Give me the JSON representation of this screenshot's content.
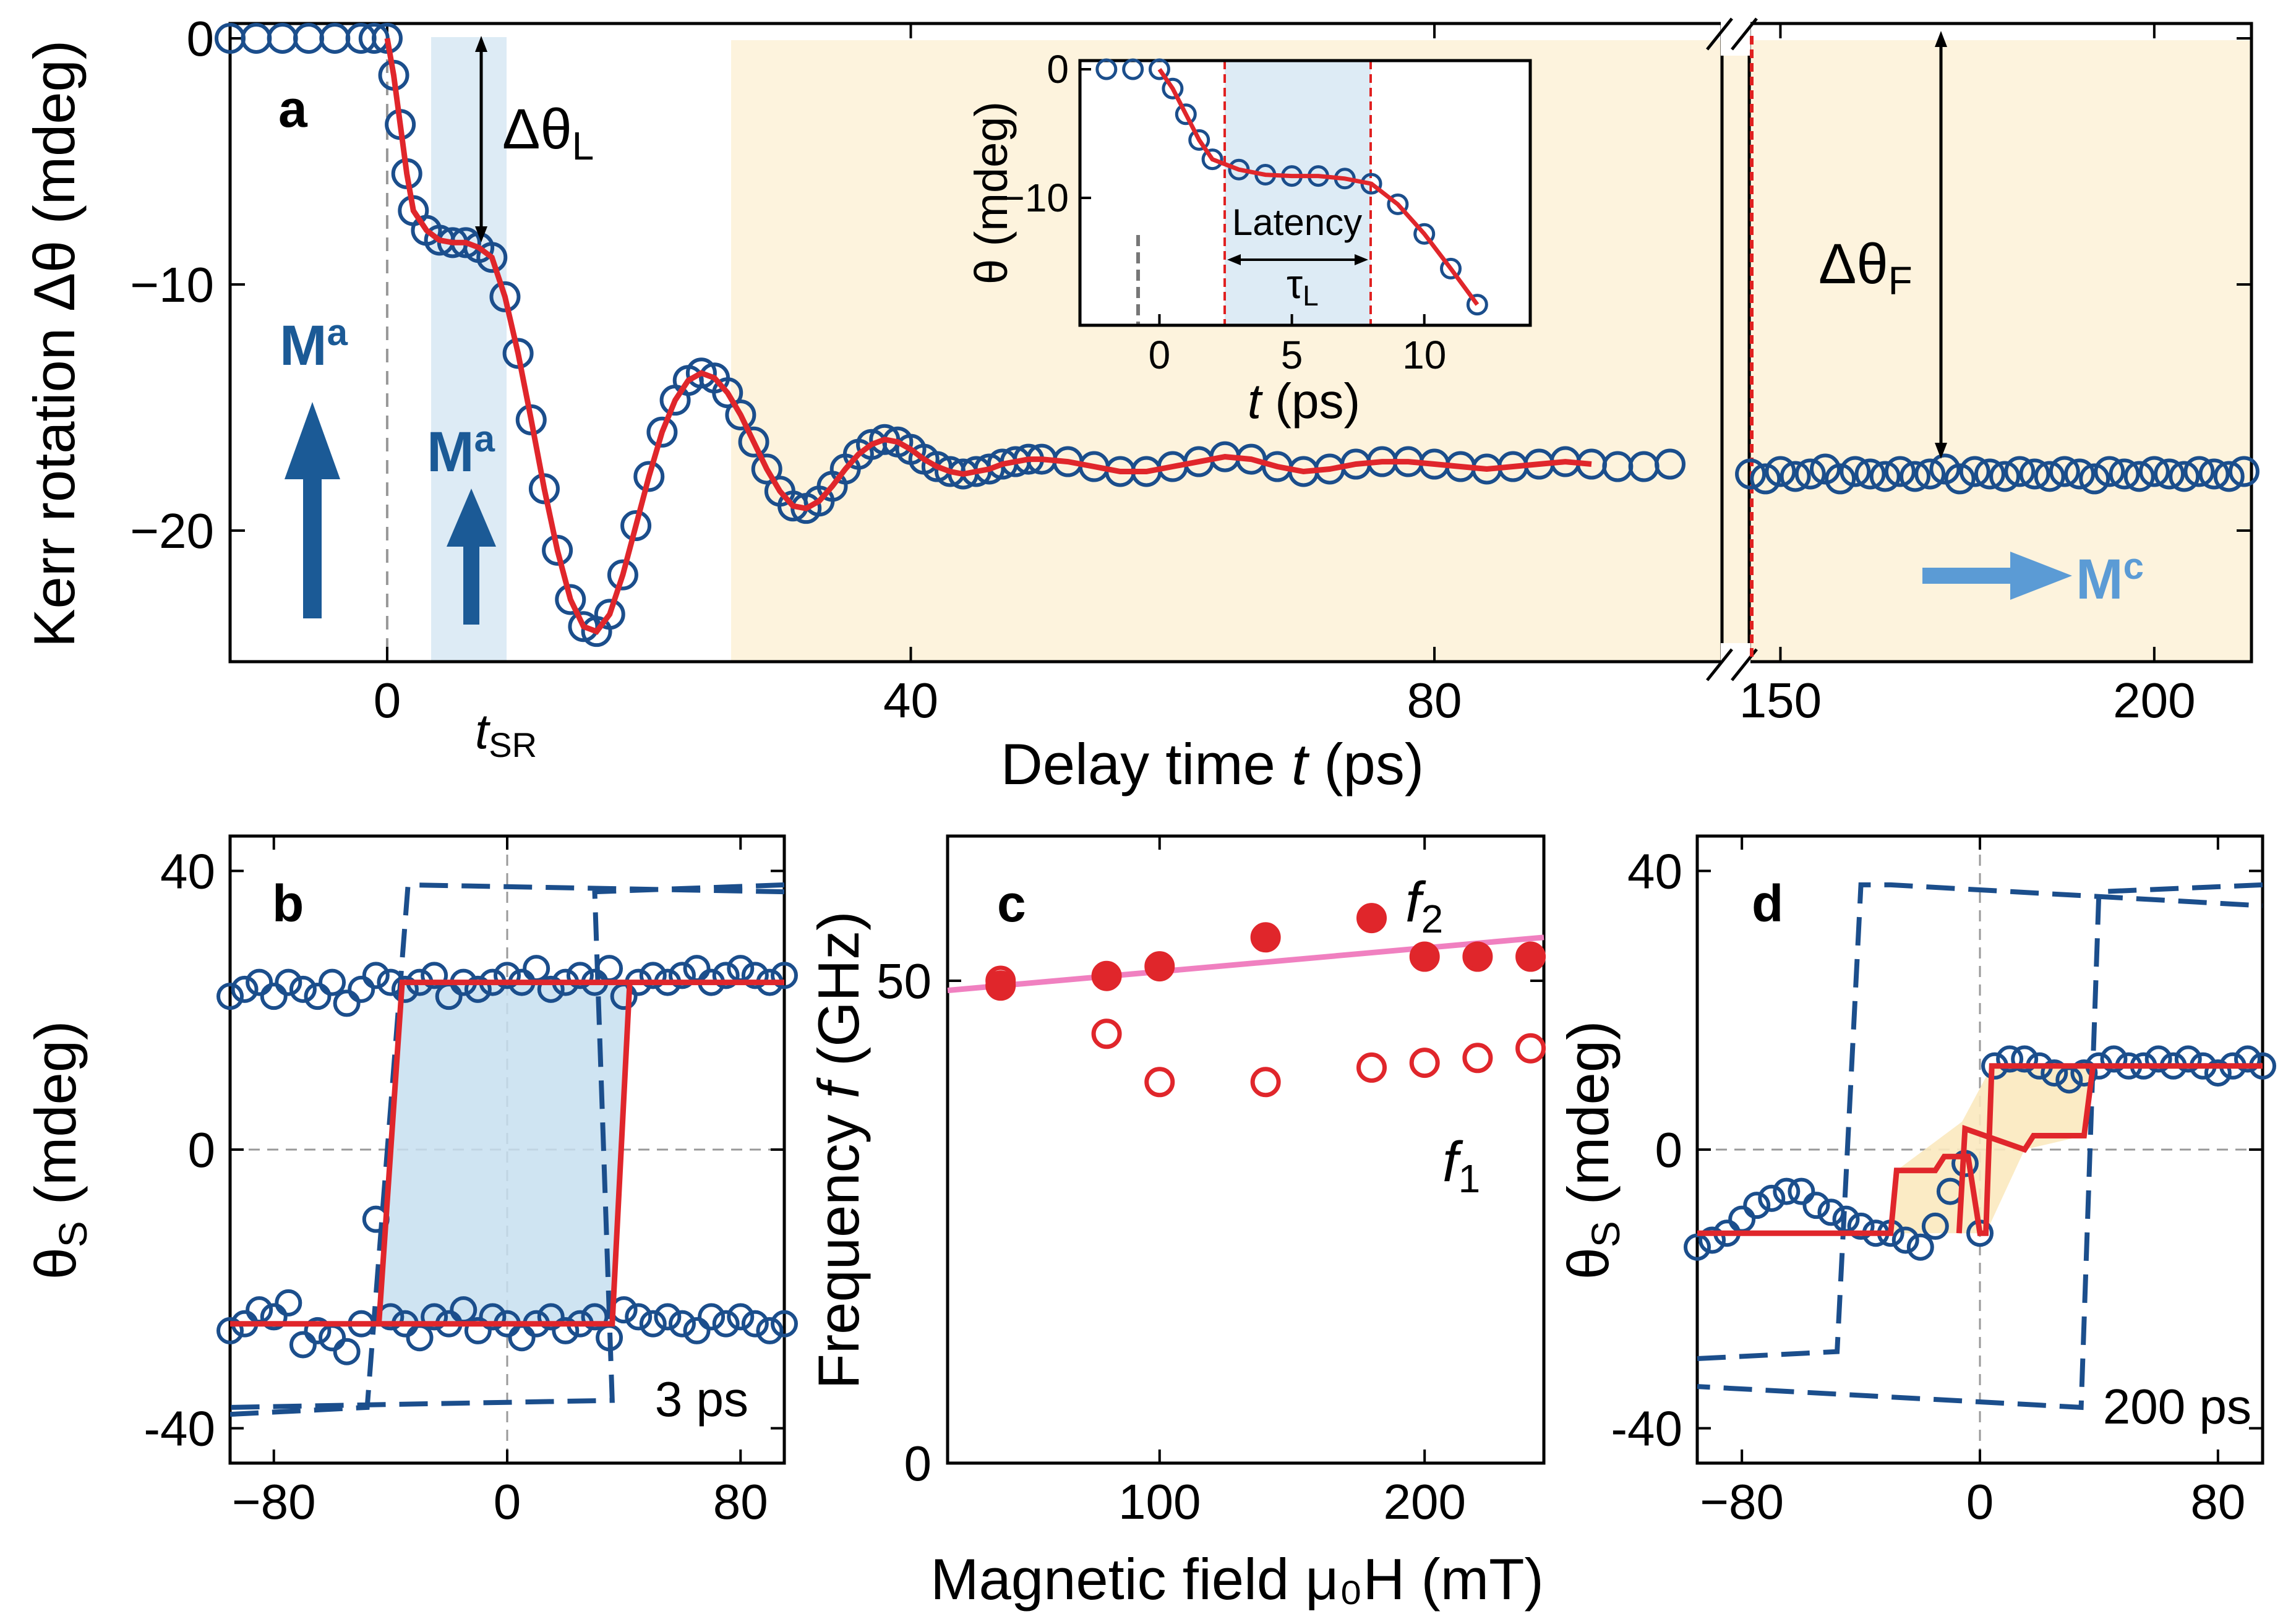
{
  "chart_data": [
    {
      "panel": "a",
      "type": "scatter",
      "xlabel_prefix": "Delay time ",
      "xlabel_var": "t",
      "xlabel_suffix": " (ps)",
      "ylabel": "Kerr rotation Δθ (mdeg)",
      "xlim_left": [
        -12,
        98
      ],
      "xlim_right": [
        145,
        213
      ],
      "ylim": [
        -25,
        1
      ],
      "xticks_left": [
        0,
        40,
        80
      ],
      "xticks_right": [
        150,
        200
      ],
      "yticks": [
        0,
        -10,
        -20
      ],
      "ytick_labels": [
        "0",
        "−10",
        "−20"
      ],
      "t_sr_label": "t",
      "t_sr_sub": "SR",
      "annotations": {
        "delta_L_base": "Δθ",
        "delta_L_sub": "L",
        "delta_F_base": "Δθ",
        "delta_F_sub": "F",
        "M_a": "M",
        "M_a_sup": "a",
        "M_c": "M",
        "M_c_sup": "c"
      },
      "data": {
        "t": [
          -12,
          -10,
          -8,
          -6,
          -4,
          -2,
          -1,
          0,
          0.5,
          1,
          1.5,
          2,
          3,
          4,
          5,
          6,
          7,
          8,
          9,
          10,
          11,
          12,
          13,
          14,
          15,
          16,
          17,
          18,
          19,
          20,
          21,
          22,
          23,
          24,
          25,
          26,
          27,
          28,
          29,
          30,
          31,
          32,
          33,
          34,
          35,
          36,
          37,
          38,
          39,
          40,
          41,
          42,
          43,
          44,
          45,
          46,
          47,
          48,
          49,
          50,
          52,
          54,
          56,
          58,
          60,
          62,
          64,
          66,
          68,
          70,
          72,
          74,
          76,
          78,
          80,
          82,
          84,
          86,
          88,
          90,
          92,
          94,
          96,
          98
        ],
        "dtheta": [
          0,
          0,
          0,
          0,
          0,
          0,
          0,
          0,
          -1.5,
          -3.5,
          -5.5,
          -7,
          -7.8,
          -8.2,
          -8.3,
          -8.3,
          -8.5,
          -8.9,
          -10.5,
          -12.8,
          -15.5,
          -18.3,
          -20.8,
          -22.8,
          -23.9,
          -24.1,
          -23.4,
          -21.8,
          -19.8,
          -17.8,
          -16.0,
          -14.7,
          -13.9,
          -13.6,
          -13.8,
          -14.4,
          -15.3,
          -16.4,
          -17.5,
          -18.4,
          -19.0,
          -19.1,
          -18.8,
          -18.2,
          -17.5,
          -16.9,
          -16.5,
          -16.3,
          -16.4,
          -16.7,
          -17.1,
          -17.4,
          -17.6,
          -17.7,
          -17.6,
          -17.5,
          -17.3,
          -17.2,
          -17.1,
          -17.1,
          -17.2,
          -17.4,
          -17.6,
          -17.6,
          -17.4,
          -17.2,
          -17.0,
          -17.1,
          -17.4,
          -17.6,
          -17.5,
          -17.3,
          -17.2,
          -17.2,
          -17.3,
          -17.4,
          -17.5,
          -17.4,
          -17.3,
          -17.2,
          -17.3,
          -17.4,
          -17.4,
          -17.3
        ],
        "t_far": [
          146,
          148,
          150,
          152,
          154,
          156,
          158,
          160,
          162,
          164,
          166,
          168,
          170,
          172,
          174,
          176,
          178,
          180,
          182,
          184,
          186,
          188,
          190,
          192,
          194,
          196,
          198,
          200,
          202,
          204,
          206,
          208,
          210,
          212
        ],
        "dtheta_far": [
          -17.7,
          -17.9,
          -17.6,
          -17.8,
          -17.7,
          -17.5,
          -17.9,
          -17.6,
          -17.7,
          -17.8,
          -17.6,
          -17.8,
          -17.7,
          -17.5,
          -17.9,
          -17.6,
          -17.7,
          -17.8,
          -17.6,
          -17.7,
          -17.8,
          -17.6,
          -17.7,
          -17.9,
          -17.6,
          -17.7,
          -17.8,
          -17.6,
          -17.7,
          -17.8,
          -17.6,
          -17.7,
          -17.8,
          -17.6
        ]
      },
      "inset": {
        "type": "line",
        "xlabel_var": "t",
        "xlabel_suffix": " (ps)",
        "ylabel": "θ (mdeg)",
        "xlim": [
          -3,
          14
        ],
        "ylim": [
          -19,
          1
        ],
        "xticks": [
          0,
          5,
          10
        ],
        "yticks": [
          0,
          -10
        ],
        "ytick_labels": [
          "0",
          "−10"
        ],
        "latency_label": "Latency",
        "tau_base": "τ",
        "tau_sub": "L",
        "latency_range": [
          3,
          8.2
        ]
      }
    },
    {
      "panel": "b",
      "type": "scatter",
      "ylabel_base": "θ",
      "ylabel_sub": "S",
      "ylabel_suffix": " (mdeg)",
      "xlim": [
        -95,
        95
      ],
      "ylim": [
        -45,
        45
      ],
      "xticks": [
        -80,
        0,
        80
      ],
      "xtick_labels": [
        "−80",
        "0",
        "80"
      ],
      "yticks": [
        40,
        0,
        -40
      ],
      "ytick_labels": [
        "40",
        "0",
        "-40"
      ],
      "delay_label": "3 ps",
      "loop_fit": {
        "H": [
          -95,
          -45,
          -40,
          40,
          45,
          95
        ],
        "upper": [
          24,
          24,
          24,
          24,
          24,
          24
        ],
        "lower": [
          -25,
          -25,
          -25,
          -25,
          -25,
          -25
        ],
        "switch_up": 42,
        "switch_down": -44
      },
      "scatter_H": [
        -95,
        -90,
        -85,
        -80,
        -75,
        -70,
        -65,
        -60,
        -55,
        -50,
        -45,
        -40,
        -35,
        -30,
        -25,
        -20,
        -15,
        -10,
        -5,
        0,
        5,
        10,
        15,
        20,
        25,
        30,
        35,
        40,
        45,
        50,
        55,
        60,
        65,
        70,
        75,
        80,
        85,
        90,
        95
      ],
      "scatter_lower": [
        -26,
        -25,
        -23,
        -24,
        -22,
        -28,
        -26,
        -27,
        -29,
        -25,
        -10,
        -24,
        -25,
        -27,
        -24,
        -25,
        -23,
        -26,
        -24,
        -25,
        -27,
        -25,
        -24,
        -26,
        -25,
        -24,
        -27,
        -23,
        -24,
        -25,
        -24,
        -25,
        -26,
        -24,
        -25,
        -24,
        -25,
        -26,
        -25
      ],
      "scatter_upper": [
        22,
        23,
        24,
        22,
        24,
        23,
        22,
        24,
        21,
        23,
        25,
        24,
        23,
        24,
        25,
        22,
        24,
        23,
        24,
        25,
        24,
        26,
        23,
        24,
        25,
        24,
        26,
        22,
        24,
        25,
        24,
        25,
        26,
        24,
        25,
        26,
        25,
        24,
        25
      ]
    },
    {
      "panel": "c",
      "type": "scatter",
      "ylabel_prefix": "Frequency ",
      "ylabel_var": "f",
      "ylabel_suffix": " (GHz)",
      "xlabel": "Magnetic field μ₀H (mT)",
      "xlim": [
        20,
        245
      ],
      "ylim": [
        0,
        65
      ],
      "xticks": [
        100,
        200
      ],
      "yticks": [
        0,
        50
      ],
      "series": [
        {
          "name": "f2",
          "label_base": "f",
          "label_sub": "2",
          "filled": true,
          "H": [
            40,
            80,
            100,
            140,
            180,
            200,
            220,
            240
          ],
          "values": [
            49.5,
            50.5,
            51.5,
            54.5,
            56.5,
            52.5,
            52.5,
            52.5
          ]
        },
        {
          "name": "f1",
          "label_base": "f",
          "label_sub": "1",
          "filled": false,
          "H": [
            40,
            80,
            100,
            140,
            180,
            200,
            220,
            240
          ],
          "values": [
            50,
            44.5,
            39.5,
            39.5,
            41,
            41.5,
            42,
            43
          ]
        }
      ],
      "fit_line": {
        "H": [
          20,
          245
        ],
        "values": [
          49,
          54.5
        ]
      }
    },
    {
      "panel": "d",
      "type": "scatter",
      "ylabel_base": "θ",
      "ylabel_sub": "S",
      "ylabel_suffix": " (mdeg)",
      "xlim": [
        -95,
        95
      ],
      "ylim": [
        -45,
        45
      ],
      "xticks": [
        -80,
        0,
        80
      ],
      "xtick_labels": [
        "−80",
        "0",
        "80"
      ],
      "yticks": [
        40,
        0,
        -40
      ],
      "ytick_labels": [
        "40",
        "0",
        "-40"
      ],
      "delay_label": "200 ps",
      "steps": {
        "low": -12,
        "mid": -3,
        "high": 12,
        "mid_hi": 2
      },
      "scatter_H": [
        -95,
        -90,
        -85,
        -80,
        -75,
        -70,
        -65,
        -60,
        -55,
        -50,
        -45,
        -40,
        -35,
        -30,
        -25,
        -20,
        -15,
        -10,
        -5,
        0,
        5,
        10,
        15,
        20,
        25,
        30,
        35,
        40,
        45,
        50,
        55,
        60,
        65,
        70,
        75,
        80,
        85,
        90,
        95
      ],
      "scatter_vals": [
        -14,
        -13,
        -12,
        -10,
        -8,
        -7,
        -6,
        -6,
        -8,
        -9,
        -10,
        -11,
        -12,
        -12,
        -13,
        -14,
        -11,
        -6,
        -2,
        -12,
        12,
        13,
        13,
        12,
        11,
        10,
        11,
        12,
        13,
        12,
        12,
        13,
        12,
        13,
        12,
        11,
        12,
        13,
        12
      ]
    }
  ]
}
